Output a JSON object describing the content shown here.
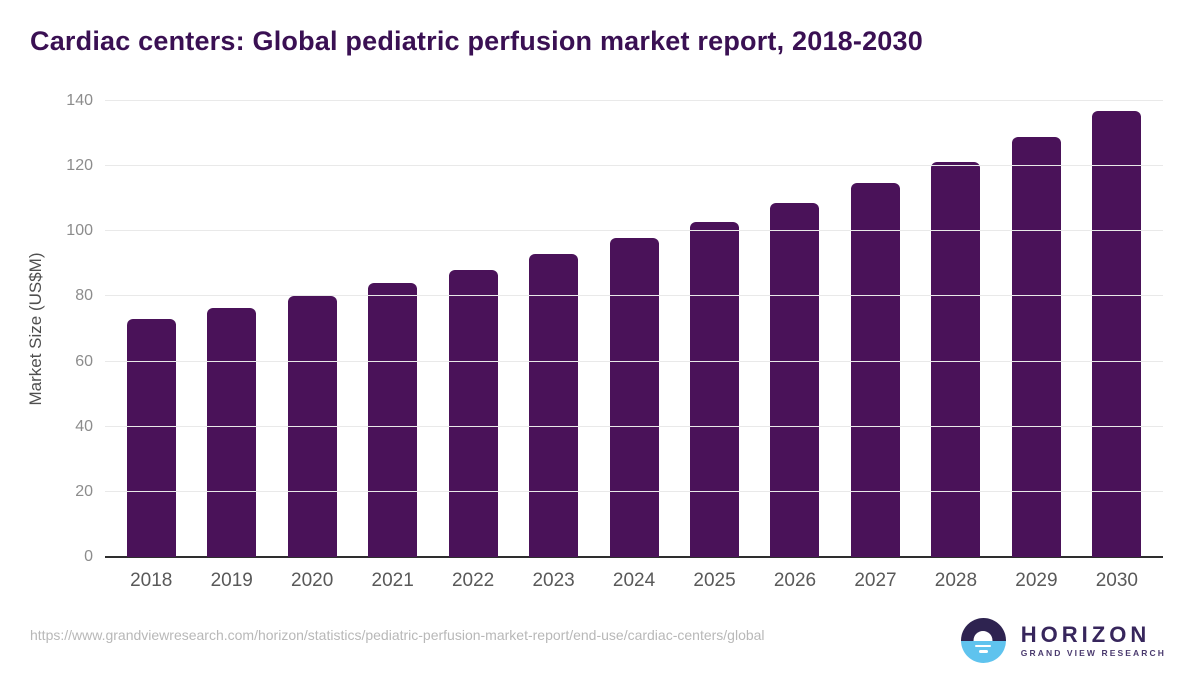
{
  "title": "Cardiac centers: Global pediatric perfusion market report, 2018-2030",
  "chart_data": {
    "type": "bar",
    "title": "Cardiac centers: Global pediatric perfusion market report, 2018-2030",
    "categories": [
      "2018",
      "2019",
      "2020",
      "2021",
      "2022",
      "2023",
      "2024",
      "2025",
      "2026",
      "2027",
      "2028",
      "2029",
      "2030"
    ],
    "values": [
      73.0,
      76.3,
      80.0,
      84.0,
      88.2,
      92.9,
      97.9,
      102.9,
      108.8,
      114.9,
      121.4,
      128.9,
      136.9
    ],
    "xlabel": "",
    "ylabel": "Market Size (US$M)",
    "ylim": [
      0,
      140
    ],
    "yticks": [
      0,
      20,
      40,
      60,
      80,
      100,
      120,
      140
    ],
    "grid": true,
    "legend": "none",
    "bar_color": "#4a1259"
  },
  "colors": {
    "title": "#3a1053",
    "bar": "#4a1259",
    "gridline": "#e9e9e9",
    "axis_line": "#2e2e2e",
    "tick_label": "#8c8c8c",
    "x_label": "#595959",
    "url_text": "#b8b8b8",
    "logo_dark": "#2e2350",
    "logo_blue": "#5fc3ee"
  },
  "footer": {
    "source_url": "https://www.grandviewresearch.com/horizon/statistics/pediatric-perfusion-market-report/end-use/cardiac-centers/global",
    "logo": {
      "name": "HORIZON",
      "subtext": "GRAND VIEW RESEARCH"
    }
  }
}
